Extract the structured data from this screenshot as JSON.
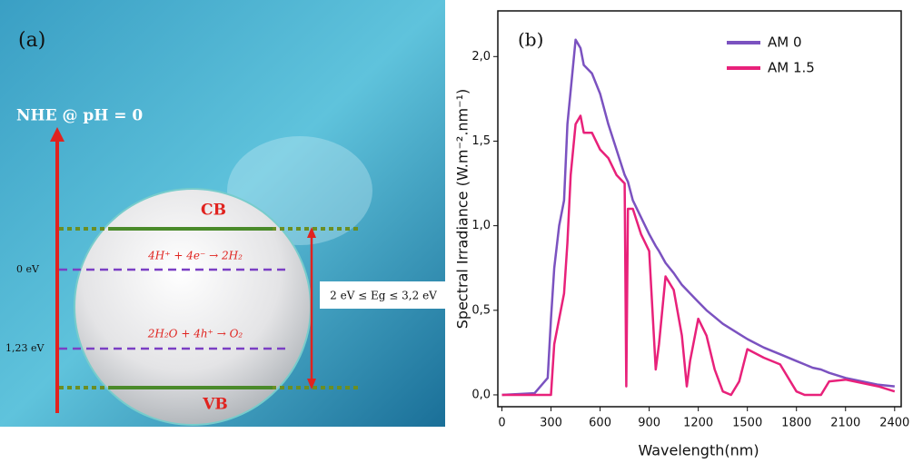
{
  "diagram": {
    "label": "(a)",
    "axis_label": "NHE @ pH = 0",
    "cb": "CB",
    "vb": "VB",
    "levels": [
      "0 eV",
      "1,23 eV"
    ],
    "reactions": [
      "4H⁺ + 4e⁻ → 2H₂",
      "2H₂O + 4h⁺ → O₂"
    ],
    "band_gap": "2 eV ≤ Eg ≤ 3,2 eV"
  },
  "chart_data": {
    "type": "line",
    "label": "(b)",
    "x_label": "Wavelength(nm)",
    "y_label": "Spectral Irradiance (W.m⁻².nm⁻¹)",
    "x": [
      0,
      200,
      280,
      300,
      320,
      350,
      380,
      400,
      420,
      450,
      480,
      500,
      550,
      600,
      650,
      700,
      750,
      760,
      770,
      800,
      850,
      900,
      940,
      960,
      1000,
      1050,
      1100,
      1130,
      1150,
      1200,
      1250,
      1300,
      1350,
      1400,
      1450,
      1500,
      1600,
      1700,
      1800,
      1850,
      1900,
      1950,
      2000,
      2100,
      2200,
      2300,
      2400
    ],
    "series": [
      {
        "name": "AM 0",
        "color": "#7b52c0",
        "values": [
          0,
          0.01,
          0.1,
          0.45,
          0.75,
          1.0,
          1.15,
          1.6,
          1.8,
          2.1,
          2.05,
          1.95,
          1.9,
          1.78,
          1.6,
          1.45,
          1.3,
          1.28,
          1.26,
          1.15,
          1.05,
          0.95,
          0.88,
          0.85,
          0.78,
          0.72,
          0.65,
          0.62,
          0.6,
          0.55,
          0.5,
          0.46,
          0.42,
          0.39,
          0.36,
          0.33,
          0.28,
          0.24,
          0.2,
          0.18,
          0.16,
          0.15,
          0.13,
          0.1,
          0.08,
          0.06,
          0.05
        ]
      },
      {
        "name": "AM 1.5",
        "color": "#e8217a",
        "values": [
          0,
          0,
          0,
          0,
          0.3,
          0.45,
          0.6,
          0.9,
          1.3,
          1.6,
          1.65,
          1.55,
          1.55,
          1.45,
          1.4,
          1.3,
          1.25,
          0.05,
          1.1,
          1.1,
          0.95,
          0.85,
          0.15,
          0.3,
          0.7,
          0.62,
          0.35,
          0.05,
          0.2,
          0.45,
          0.35,
          0.15,
          0.02,
          0,
          0.08,
          0.27,
          0.22,
          0.18,
          0.02,
          0,
          0,
          0,
          0.08,
          0.09,
          0.07,
          0.05,
          0.02
        ]
      }
    ],
    "xlim": [
      -25,
      2440
    ],
    "ylim": [
      -0.07,
      2.27
    ],
    "xticks": [
      0,
      300,
      600,
      900,
      1200,
      1500,
      1800,
      2100,
      2400
    ],
    "yticks": [
      {
        "value": 0,
        "label": "0,0"
      },
      {
        "value": 0.5,
        "label": "0,5"
      },
      {
        "value": 1,
        "label": "1,0"
      },
      {
        "value": 1.5,
        "label": "1,5"
      },
      {
        "value": 2,
        "label": "2,0"
      }
    ]
  }
}
